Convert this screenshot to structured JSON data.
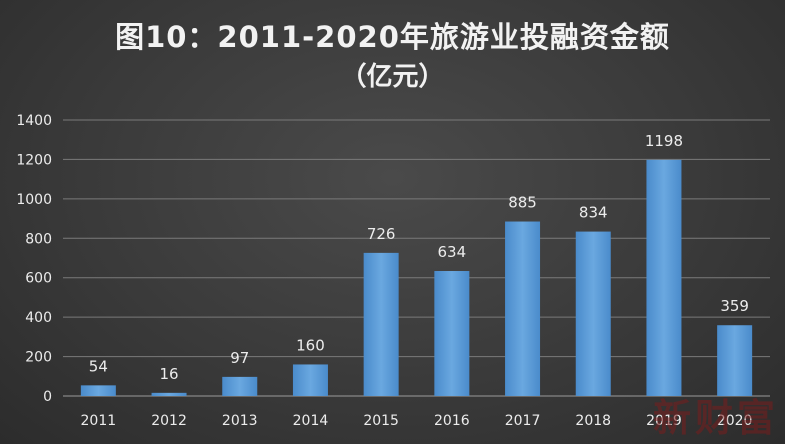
{
  "title_line1": "图10：2011-2020年旅游业投融资金额",
  "title_line2": "（亿元）",
  "watermark": "新财富",
  "colors": {
    "bar": "#5b9bd5",
    "bar_light": "#79b2e6",
    "grid": "#7a7a7a",
    "text": "#ececec"
  },
  "chart_data": {
    "type": "bar",
    "title": "图10：2011-2020年旅游业投融资金额（亿元）",
    "categories": [
      "2011",
      "2012",
      "2013",
      "2014",
      "2015",
      "2016",
      "2017",
      "2018",
      "2019",
      "2020"
    ],
    "values": [
      54,
      16,
      97,
      160,
      726,
      634,
      885,
      834,
      1198,
      359
    ],
    "ylim": [
      0,
      1400
    ],
    "yticks": [
      "0",
      "200",
      "400",
      "600",
      "800",
      "1000",
      "1200",
      "1400"
    ],
    "grid": true,
    "legend": "none"
  }
}
